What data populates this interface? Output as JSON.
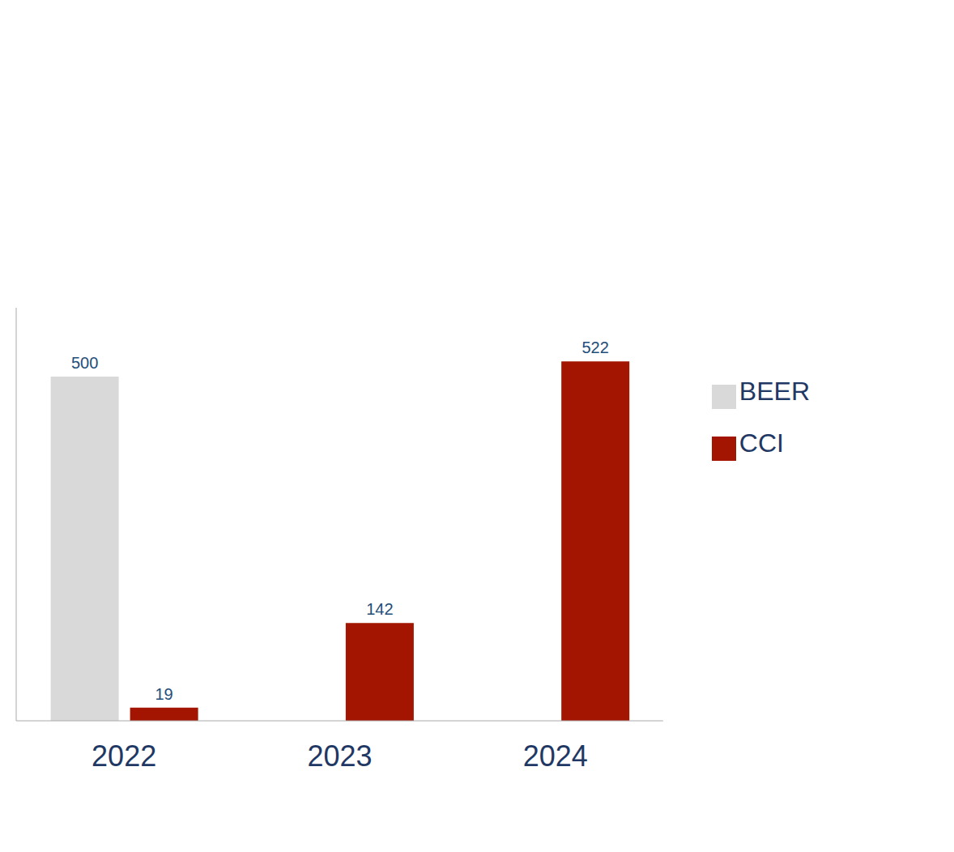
{
  "chart_data": {
    "type": "bar",
    "categories": [
      "2022",
      "2023",
      "2024"
    ],
    "series": [
      {
        "name": "BEER",
        "color": "#d9d9d9",
        "values": [
          500,
          null,
          null
        ]
      },
      {
        "name": "CCI",
        "color": "#a31500",
        "values": [
          19,
          142,
          522
        ]
      }
    ],
    "ylim": [
      0,
      600
    ],
    "tick_labels": "x",
    "data_labels": true,
    "legend": "right",
    "grid": false
  }
}
